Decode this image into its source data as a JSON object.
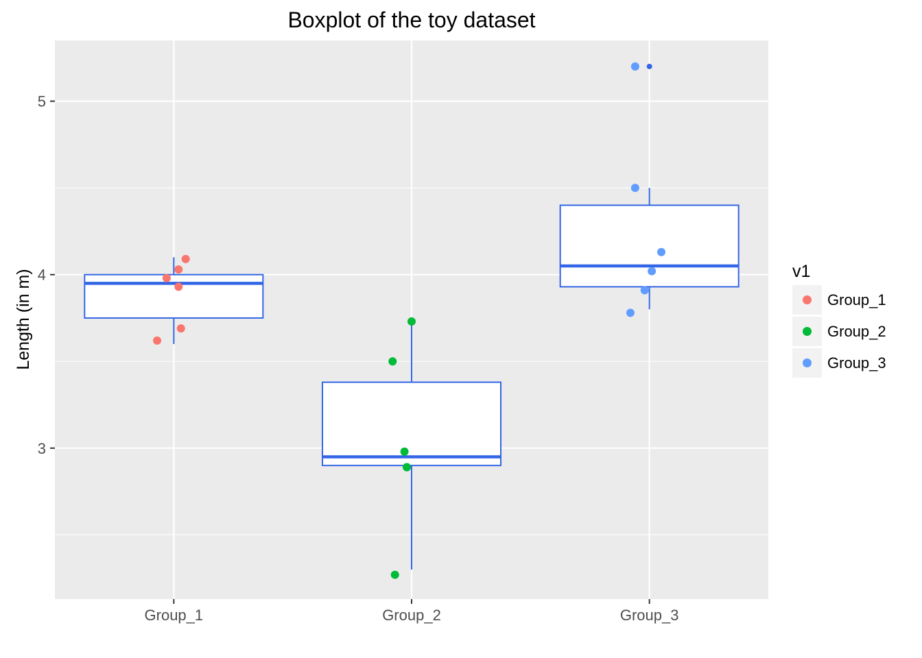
{
  "chart_data": {
    "type": "box",
    "title": "Boxplot of the toy dataset",
    "xlabel": "",
    "ylabel": "Length (in m)",
    "ylim": [
      2.13,
      5.35
    ],
    "y_ticks": [
      3,
      4,
      5
    ],
    "y_tick_labels": [
      "3",
      "4",
      "5"
    ],
    "categories": [
      "Group_1",
      "Group_2",
      "Group_3"
    ],
    "grid": true,
    "box_color": "#3366e6",
    "panel_background": "#ebebeb",
    "gridline_color": "#ffffff",
    "boxes": [
      {
        "category": "Group_1",
        "whisker_low": 3.6,
        "q1": 3.75,
        "median": 3.95,
        "q3": 4.0,
        "whisker_high": 4.1,
        "outliers": []
      },
      {
        "category": "Group_2",
        "whisker_low": 2.3,
        "q1": 2.9,
        "median": 2.95,
        "q3": 3.38,
        "whisker_high": 3.73,
        "outliers": []
      },
      {
        "category": "Group_3",
        "whisker_low": 3.8,
        "q1": 3.93,
        "median": 4.05,
        "q3": 4.4,
        "whisker_high": 4.5,
        "outliers": [
          5.2
        ]
      }
    ],
    "points": [
      {
        "group": "Group_1",
        "jitter": -0.07,
        "y": 3.62
      },
      {
        "group": "Group_1",
        "jitter": 0.03,
        "y": 3.69
      },
      {
        "group": "Group_1",
        "jitter": 0.02,
        "y": 3.93
      },
      {
        "group": "Group_1",
        "jitter": -0.03,
        "y": 3.98
      },
      {
        "group": "Group_1",
        "jitter": 0.02,
        "y": 4.03
      },
      {
        "group": "Group_1",
        "jitter": 0.05,
        "y": 4.09
      },
      {
        "group": "Group_2",
        "jitter": -0.07,
        "y": 2.27
      },
      {
        "group": "Group_2",
        "jitter": -0.02,
        "y": 2.89
      },
      {
        "group": "Group_2",
        "jitter": -0.03,
        "y": 2.98
      },
      {
        "group": "Group_2",
        "jitter": -0.02,
        "y": 2.89
      },
      {
        "group": "Group_2",
        "jitter": -0.08,
        "y": 3.5
      },
      {
        "group": "Group_2",
        "jitter": 0.0,
        "y": 3.73
      },
      {
        "group": "Group_3",
        "jitter": -0.08,
        "y": 3.78
      },
      {
        "group": "Group_3",
        "jitter": -0.02,
        "y": 3.91
      },
      {
        "group": "Group_3",
        "jitter": 0.01,
        "y": 4.02
      },
      {
        "group": "Group_3",
        "jitter": 0.05,
        "y": 4.13
      },
      {
        "group": "Group_3",
        "jitter": -0.06,
        "y": 4.5
      },
      {
        "group": "Group_3",
        "jitter": -0.06,
        "y": 5.2
      }
    ],
    "legend": {
      "title": "v1",
      "placement": "right",
      "entries": [
        {
          "label": "Group_1",
          "color": "#f8766d"
        },
        {
          "label": "Group_2",
          "color": "#00ba38"
        },
        {
          "label": "Group_3",
          "color": "#619cff"
        }
      ]
    }
  }
}
